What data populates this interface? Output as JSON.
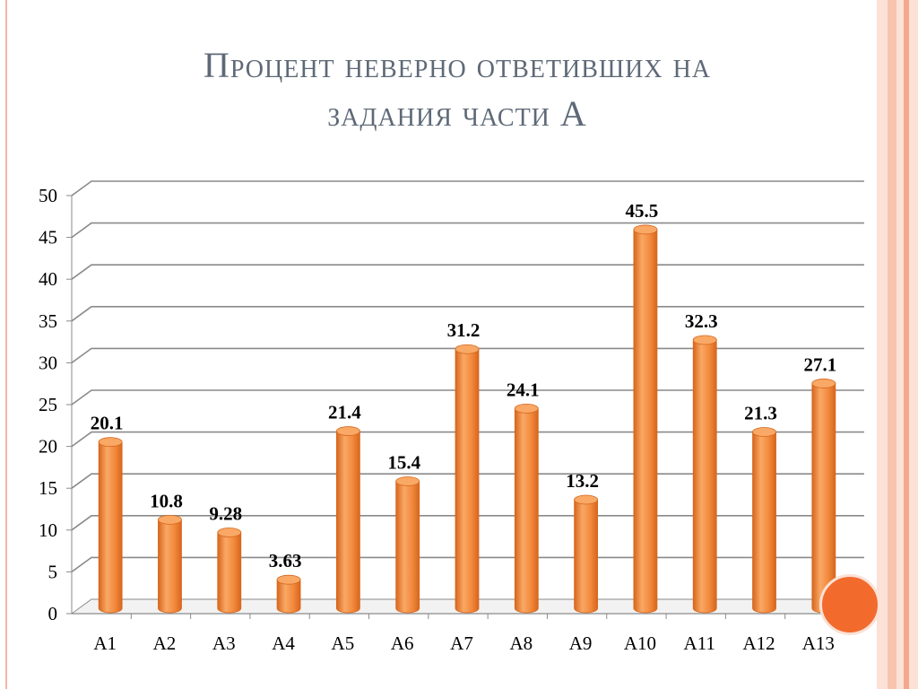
{
  "slide": {
    "title_line1": "Процент неверно ответивших на",
    "title_line2": "задания части А"
  },
  "colors": {
    "bar": "#f2893c",
    "bar_dark": "#d7661c",
    "bar_top": "#f9a865",
    "grid": "#8a8a8a",
    "accent": "#f26b2d"
  },
  "chart_data": {
    "type": "bar",
    "title": "Процент неверно ответивших на задания части А",
    "categories": [
      "А1",
      "А2",
      "А3",
      "А4",
      "А5",
      "А6",
      "А7",
      "А8",
      "А9",
      "А10",
      "А11",
      "А12",
      "А13"
    ],
    "values": [
      20.1,
      10.8,
      9.28,
      3.63,
      21.4,
      15.4,
      31.2,
      24.1,
      13.2,
      45.5,
      32.3,
      21.3,
      27.1
    ],
    "data_labels": [
      "20.1",
      "10.8",
      "9.28",
      "3.63",
      "21.4",
      "15.4",
      "31.2",
      "24.1",
      "13.2",
      "45.5",
      "32.3",
      "21.3",
      "27.1"
    ],
    "y_ticks": [
      0,
      5,
      10,
      15,
      20,
      25,
      30,
      35,
      40,
      45,
      50
    ],
    "ylim": [
      0,
      50
    ],
    "grid": true,
    "legend": false,
    "style": "3d-cylinder"
  }
}
